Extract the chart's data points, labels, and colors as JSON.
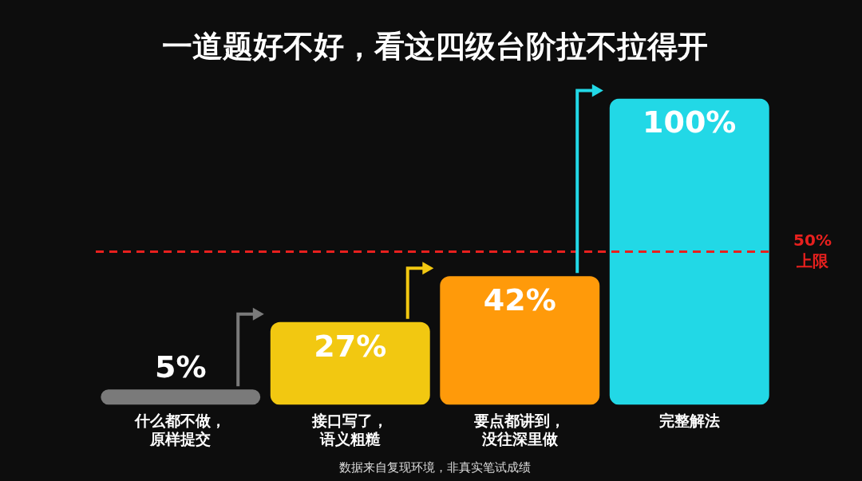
{
  "chart_data": {
    "type": "bar",
    "title": "一道题好不好，看这四级台阶拉不拉得开",
    "categories": [
      "什么都不做，原样提交",
      "接口写了，语义粗糙",
      "要点都讲到，没往深里做",
      "完整解法"
    ],
    "values": [
      5,
      27,
      42,
      100
    ],
    "colors": [
      "#7a7a7a",
      "#f2c811",
      "#ff9a0a",
      "#22d8e6"
    ],
    "value_labels": [
      "5%",
      "27%",
      "42%",
      "100%"
    ],
    "ylim": [
      0,
      100
    ],
    "tick_labels": "x",
    "grid": false,
    "legend": false,
    "ref_lines": [
      {
        "axis": "y",
        "value": 50,
        "label": "50% 上限",
        "color": "#e8201e",
        "line_style": "dashed"
      }
    ],
    "annotations": [
      "数据来自复现环境，非真实笔试成绩"
    ]
  }
}
